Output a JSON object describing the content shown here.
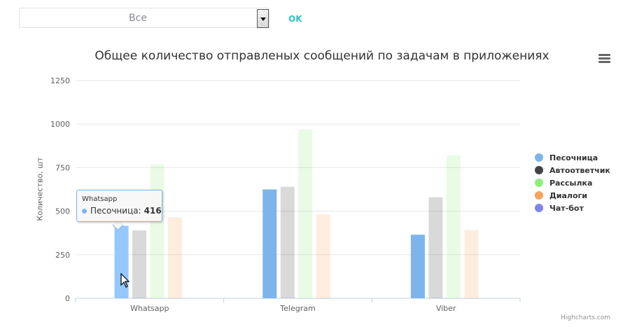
{
  "filter": {
    "selected": "Все",
    "ok_label": "OK"
  },
  "colors": {
    "Песочница": "#7cb5ec",
    "Автоответчик": "#434348",
    "Рассылка": "#90ed7d",
    "Диалоги": "#f7a35c",
    "Чат-бот": "#8085e9"
  },
  "chart_data": {
    "type": "bar",
    "title": "Общее количество отправленых сообщений по задачам в приложениях",
    "xlabel": "",
    "ylabel": "Количество, шт",
    "ylim": [
      0,
      1250
    ],
    "yticks": [
      0,
      250,
      500,
      750,
      1000,
      1250
    ],
    "categories": [
      "Whatsapp",
      "Telegram",
      "Viber"
    ],
    "series": [
      {
        "name": "Песочница",
        "values": [
          416,
          625,
          365
        ]
      },
      {
        "name": "Автоответчик",
        "values": [
          390,
          640,
          580
        ]
      },
      {
        "name": "Рассылка",
        "values": [
          768,
          970,
          820
        ]
      },
      {
        "name": "Диалоги",
        "values": [
          465,
          480,
          392
        ]
      },
      {
        "name": "Чат-бот",
        "values": [
          0,
          0,
          0
        ]
      }
    ],
    "legend_position": "right",
    "grid": true,
    "hovered_category": "Whatsapp",
    "hovered_series": "Песочница"
  },
  "tooltip": {
    "header": "Whatsapp",
    "series": "Песочница",
    "value": "416"
  },
  "credits": "Highcharts.com"
}
